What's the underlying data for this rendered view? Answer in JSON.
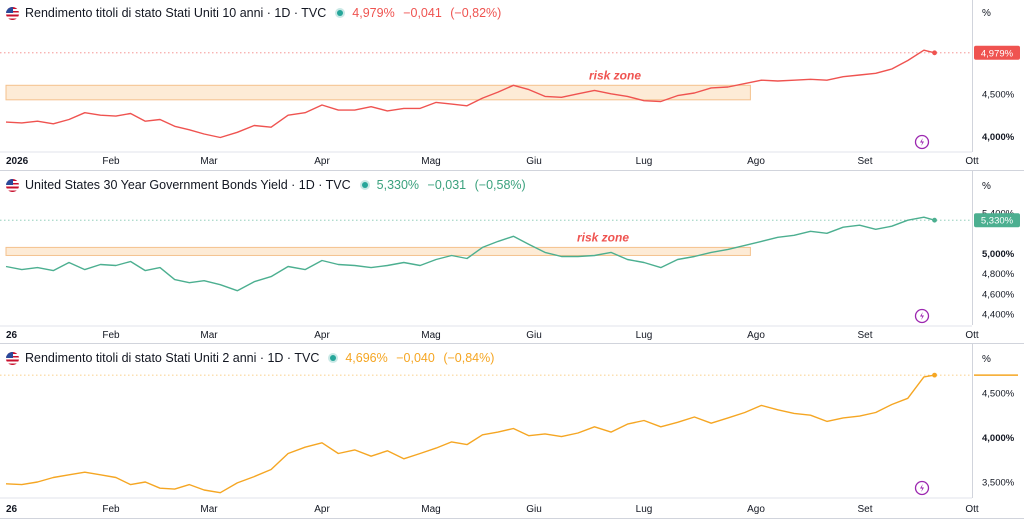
{
  "colors": {
    "us10y": "#ef5350",
    "us30y": "#4caf90",
    "us02y": "#f5a623",
    "zone_fill": "#fde8cf",
    "zone_border": "#f3b77a",
    "zone_label": "#ef5350",
    "grid_text": "#131722",
    "flash_icon": "#9c27b0"
  },
  "month_labels": [
    [
      "2026",
      "Feb",
      "Mar",
      "Apr",
      "Mag",
      "Giu",
      "Lug",
      "Ago",
      "Set",
      "Ott"
    ],
    [
      "26",
      "Feb",
      "Mar",
      "Apr",
      "Mag",
      "Giu",
      "Lug",
      "Ago",
      "Set",
      "Ott"
    ],
    [
      "26",
      "Feb",
      "Mar",
      "Apr",
      "Mag",
      "Giu",
      "Lug",
      "Ago",
      "Set",
      "Ott"
    ]
  ],
  "panels": [
    {
      "id": "us10y",
      "title": "Rendimento titoli di stato Stati Uniti 10 anni · 1D · TVC",
      "last": "4,979%",
      "change": "−0,041",
      "change_pct": "(−0,82%)",
      "axis_unit": "%",
      "price_tag": "4,979%",
      "risk_label": "risk zone"
    },
    {
      "id": "us30y",
      "title": "United States 30 Year Government Bonds Yield · 1D · TVC",
      "last": "5,330%",
      "change": "−0,031",
      "change_pct": "(−0,58%)",
      "axis_unit": "%",
      "price_tag": "5,330%",
      "risk_label": "risk zone"
    },
    {
      "id": "us02y",
      "title": "Rendimento titoli di stato Stati Uniti 2 anni · 1D · TVC",
      "last": "4,696%",
      "change": "−0,040",
      "change_pct": "(−0,84%)",
      "axis_unit": "%",
      "price_tag": "",
      "risk_label": ""
    }
  ],
  "chart_data": [
    {
      "type": "line",
      "title": "Rendimento titoli di stato Stati Uniti 10 anni · 1D · TVC",
      "x_unit": "month index (0 = Jan 2026)",
      "ylim": [
        3.82,
        5.34
      ],
      "yticks": [
        {
          "v": 4.0,
          "label": "4,000%"
        },
        {
          "v": 4.5,
          "label": "4,500%"
        }
      ],
      "risk_zone": {
        "x": [
          0,
          6.95
        ],
        "y": [
          4.43,
          4.6
        ]
      },
      "series": [
        {
          "x": [
            0,
            0.15,
            0.3,
            0.45,
            0.6,
            0.75,
            0.9,
            1.05,
            1.2,
            1.35,
            1.5,
            1.65,
            1.8,
            1.95,
            2.1,
            2.25,
            2.4,
            2.55,
            2.7,
            2.85,
            3.0,
            3.15,
            3.3,
            3.45,
            3.6,
            3.75,
            3.9,
            4.05,
            4.2,
            4.35,
            4.5,
            4.65,
            4.8,
            4.95,
            5.1,
            5.25,
            5.4,
            5.55,
            5.7,
            5.85,
            6.0,
            6.15,
            6.3,
            6.45,
            6.6,
            6.75,
            6.9,
            7.05,
            7.2,
            7.35,
            7.5,
            7.65,
            7.8,
            7.95,
            8.1,
            8.25,
            8.4,
            8.55,
            8.65
          ],
          "values": [
            4.17,
            4.16,
            4.18,
            4.15,
            4.2,
            4.28,
            4.25,
            4.24,
            4.27,
            4.18,
            4.2,
            4.12,
            4.08,
            4.03,
            3.99,
            4.05,
            4.13,
            4.11,
            4.25,
            4.28,
            4.37,
            4.31,
            4.31,
            4.35,
            4.3,
            4.33,
            4.33,
            4.4,
            4.38,
            4.36,
            4.45,
            4.52,
            4.6,
            4.55,
            4.47,
            4.46,
            4.5,
            4.54,
            4.5,
            4.47,
            4.42,
            4.41,
            4.48,
            4.51,
            4.57,
            4.58,
            4.62,
            4.66,
            4.65,
            4.66,
            4.67,
            4.66,
            4.7,
            4.72,
            4.74,
            4.79,
            4.89,
            5.01,
            4.98
          ]
        }
      ]
    },
    {
      "type": "line",
      "title": "United States 30 Year Government Bonds Yield · 1D · TVC",
      "x_unit": "month index (0 = Jan 2026)",
      "ylim": [
        4.28,
        5.58
      ],
      "yticks": [
        {
          "v": 4.4,
          "label": "4,400%"
        },
        {
          "v": 4.6,
          "label": "4,600%"
        },
        {
          "v": 4.8,
          "label": "4,800%"
        },
        {
          "v": 5.0,
          "label": "5,000%"
        },
        {
          "v": 5.4,
          "label": "5,400%"
        }
      ],
      "risk_zone": {
        "x": [
          0,
          6.95
        ],
        "y": [
          4.98,
          5.06
        ]
      },
      "series": [
        {
          "x": [
            0,
            0.15,
            0.3,
            0.45,
            0.6,
            0.75,
            0.9,
            1.05,
            1.2,
            1.35,
            1.5,
            1.65,
            1.8,
            1.95,
            2.1,
            2.25,
            2.4,
            2.55,
            2.7,
            2.85,
            3.0,
            3.15,
            3.3,
            3.45,
            3.6,
            3.75,
            3.9,
            4.05,
            4.2,
            4.35,
            4.5,
            4.65,
            4.8,
            4.95,
            5.1,
            5.25,
            5.4,
            5.55,
            5.7,
            5.85,
            6.0,
            6.15,
            6.3,
            6.45,
            6.6,
            6.75,
            6.9,
            7.05,
            7.2,
            7.35,
            7.5,
            7.65,
            7.8,
            7.95,
            8.1,
            8.25,
            8.4,
            8.55,
            8.65
          ],
          "values": [
            4.87,
            4.84,
            4.86,
            4.83,
            4.91,
            4.84,
            4.89,
            4.88,
            4.92,
            4.83,
            4.86,
            4.74,
            4.71,
            4.73,
            4.69,
            4.63,
            4.72,
            4.77,
            4.87,
            4.84,
            4.93,
            4.89,
            4.88,
            4.86,
            4.88,
            4.91,
            4.88,
            4.94,
            4.98,
            4.95,
            5.06,
            5.12,
            5.17,
            5.09,
            5.01,
            4.97,
            4.97,
            4.98,
            5.01,
            4.94,
            4.91,
            4.86,
            4.94,
            4.97,
            5.01,
            5.04,
            5.08,
            5.12,
            5.16,
            5.18,
            5.22,
            5.2,
            5.26,
            5.28,
            5.24,
            5.27,
            5.33,
            5.36,
            5.33
          ]
        }
      ]
    },
    {
      "type": "line",
      "title": "Rendimento titoli di stato Stati Uniti 2 anni · 1D · TVC",
      "x_unit": "month index (0 = Jan 2026)",
      "ylim": [
        3.32,
        4.78
      ],
      "yticks": [
        {
          "v": 3.5,
          "label": "3,500%"
        },
        {
          "v": 4.0,
          "label": "4,000%"
        },
        {
          "v": 4.5,
          "label": "4,500%"
        }
      ],
      "series": [
        {
          "x": [
            0,
            0.15,
            0.3,
            0.45,
            0.6,
            0.75,
            0.9,
            1.05,
            1.2,
            1.35,
            1.5,
            1.65,
            1.8,
            1.95,
            2.1,
            2.25,
            2.4,
            2.55,
            2.7,
            2.85,
            3.0,
            3.15,
            3.3,
            3.45,
            3.6,
            3.75,
            3.9,
            4.05,
            4.2,
            4.35,
            4.5,
            4.65,
            4.8,
            4.95,
            5.1,
            5.25,
            5.4,
            5.55,
            5.7,
            5.85,
            6.0,
            6.15,
            6.3,
            6.45,
            6.6,
            6.75,
            6.9,
            7.05,
            7.2,
            7.35,
            7.5,
            7.65,
            7.8,
            7.95,
            8.1,
            8.25,
            8.4,
            8.55,
            8.65
          ],
          "values": [
            3.48,
            3.47,
            3.5,
            3.55,
            3.58,
            3.61,
            3.58,
            3.55,
            3.47,
            3.5,
            3.43,
            3.42,
            3.47,
            3.41,
            3.38,
            3.49,
            3.56,
            3.64,
            3.82,
            3.89,
            3.94,
            3.82,
            3.86,
            3.79,
            3.85,
            3.76,
            3.82,
            3.88,
            3.95,
            3.92,
            4.03,
            4.06,
            4.1,
            4.02,
            4.04,
            4.01,
            4.05,
            4.12,
            4.06,
            4.15,
            4.19,
            4.12,
            4.17,
            4.23,
            4.16,
            4.22,
            4.28,
            4.36,
            4.31,
            4.27,
            4.25,
            4.18,
            4.22,
            4.24,
            4.28,
            4.37,
            4.44,
            4.68,
            4.7
          ]
        }
      ]
    }
  ]
}
